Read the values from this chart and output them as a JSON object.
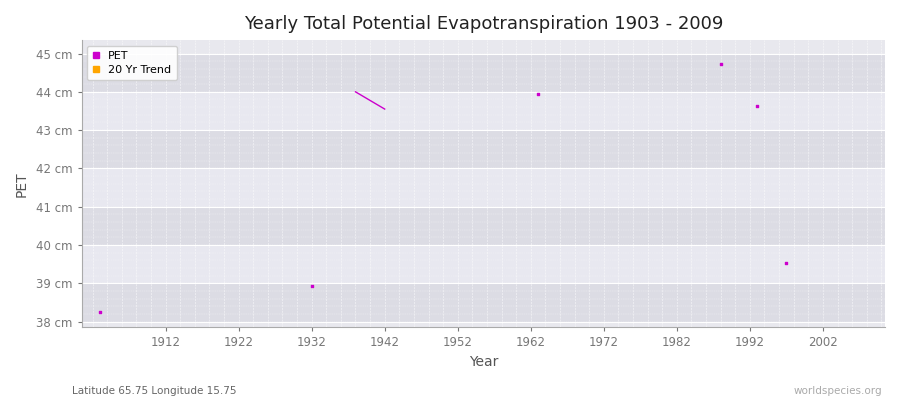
{
  "title": "Yearly Total Potential Evapotranspiration 1903 - 2009",
  "xlabel": "Year",
  "ylabel": "PET",
  "subtitle_left": "Latitude 65.75 Longitude 15.75",
  "subtitle_right": "worldspecies.org",
  "ylim": [
    37.85,
    45.35
  ],
  "xlim": [
    1900.5,
    2010.5
  ],
  "yticks": [
    38,
    39,
    40,
    41,
    42,
    43,
    44,
    45
  ],
  "ytick_labels": [
    "38 cm",
    "39 cm",
    "40 cm",
    "41 cm",
    "42 cm",
    "43 cm",
    "44 cm",
    "45 cm"
  ],
  "xticks": [
    1912,
    1922,
    1932,
    1942,
    1952,
    1962,
    1972,
    1982,
    1992,
    2002
  ],
  "fig_bg_color": "#ffffff",
  "plot_bg_color": "#e8e8ee",
  "band_colors": [
    "#dcdce4",
    "#e8e8f0"
  ],
  "pet_color": "#cc00cc",
  "trend_color": "#ffa500",
  "pet_points": [
    [
      1903,
      38.25
    ],
    [
      1932,
      38.93
    ],
    [
      1963,
      43.95
    ],
    [
      1988,
      44.72
    ],
    [
      1993,
      43.63
    ],
    [
      1997,
      39.53
    ]
  ],
  "trend_line": [
    [
      1938,
      44.0
    ],
    [
      1942,
      43.55
    ]
  ],
  "legend_pet_label": "PET",
  "legend_trend_label": "20 Yr Trend"
}
